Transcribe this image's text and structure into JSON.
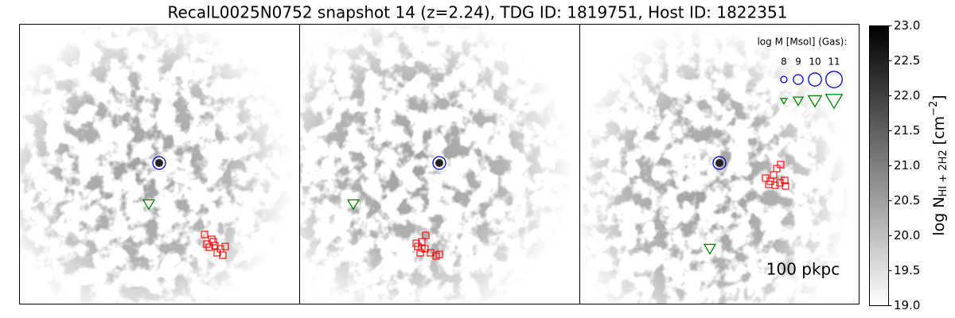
{
  "chart_data": {
    "type": "map",
    "title": "RecalL0025N0752 snapshot 14 (z=2.24), TDG ID: 1819751, Host ID: 1822351",
    "colorbar": {
      "label_parts": {
        "main": "log N",
        "sub": "HI + 2H2",
        "unit": " [cm",
        "sup": "−2",
        "close": "]"
      },
      "clim": [
        19,
        23
      ],
      "ticks": [
        {
          "value": 19,
          "label": "19.0"
        },
        {
          "value": 19.5,
          "label": "19.5"
        },
        {
          "value": 20,
          "label": "20.0"
        },
        {
          "value": 20.5,
          "label": "20.5"
        },
        {
          "value": 21,
          "label": "21.0"
        },
        {
          "value": 21.5,
          "label": "21.5"
        },
        {
          "value": 22,
          "label": "22.0"
        },
        {
          "value": 22.5,
          "label": "22.5"
        },
        {
          "value": 23,
          "label": "23.0"
        }
      ],
      "cmap": [
        "#ffffff",
        "#000000"
      ]
    },
    "legend": {
      "title": "log M [Msol] (Gas):",
      "sizes": [
        8,
        9,
        10,
        11
      ]
    },
    "scale_bar": "100 pkpc",
    "host_color": "#0000cc",
    "tdg_color": "#008000",
    "candidate_color": "#ff0000"
  }
}
